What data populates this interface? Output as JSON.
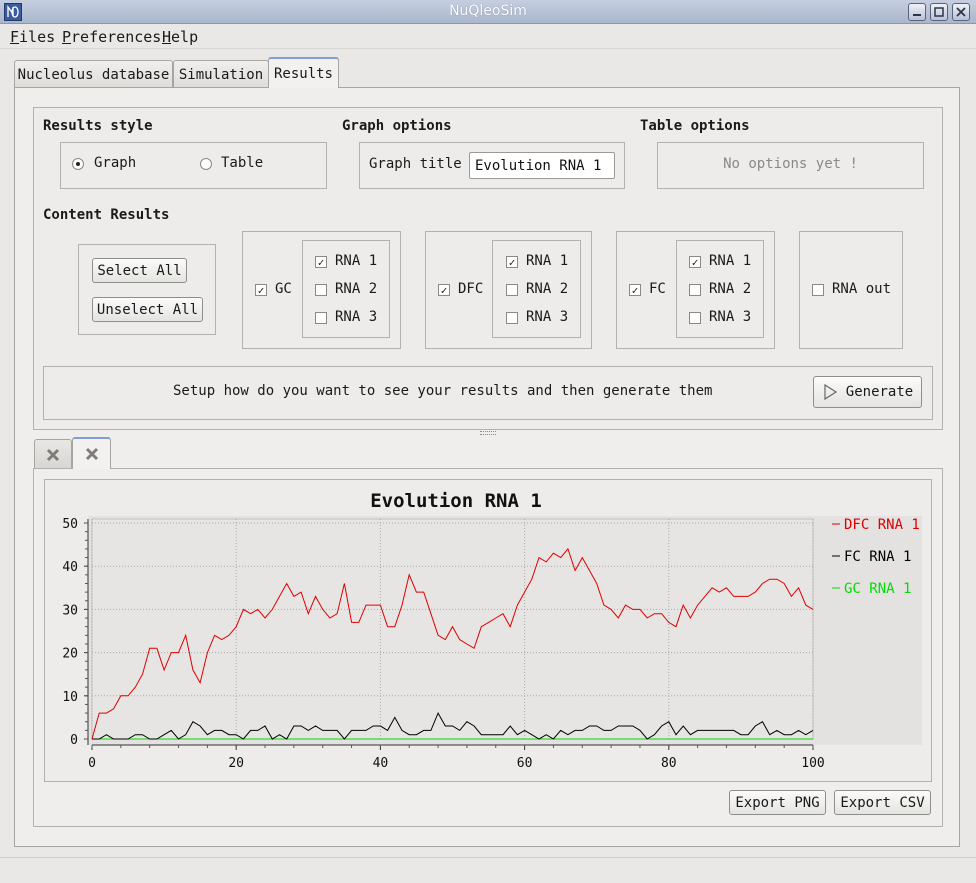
{
  "window": {
    "title": "NuQleoSim"
  },
  "menu": {
    "files": "Files",
    "preferences": "Preferences",
    "help": "Help"
  },
  "tabs": {
    "nucleolus": "Nucleolus database",
    "simulation": "Simulation",
    "results": "Results"
  },
  "results_style": {
    "heading": "Results style",
    "graph_label": "Graph",
    "table_label": "Table",
    "selected": "Graph"
  },
  "graph_options": {
    "heading": "Graph options",
    "title_label": "Graph title",
    "title_value": "Evolution RNA 1"
  },
  "table_options": {
    "heading": "Table options",
    "placeholder": "No options yet !"
  },
  "content_results": {
    "heading": "Content Results",
    "select_all": "Select All",
    "unselect_all": "Unselect All",
    "groups": [
      {
        "name": "GC",
        "checked": true,
        "rnas": [
          {
            "label": "RNA 1",
            "checked": true
          },
          {
            "label": "RNA 2",
            "checked": false
          },
          {
            "label": "RNA 3",
            "checked": false
          }
        ]
      },
      {
        "name": "DFC",
        "checked": true,
        "rnas": [
          {
            "label": "RNA 1",
            "checked": true
          },
          {
            "label": "RNA 2",
            "checked": false
          },
          {
            "label": "RNA 3",
            "checked": false
          }
        ]
      },
      {
        "name": "FC",
        "checked": true,
        "rnas": [
          {
            "label": "RNA 1",
            "checked": true
          },
          {
            "label": "RNA 2",
            "checked": false
          },
          {
            "label": "RNA 3",
            "checked": false
          }
        ]
      }
    ],
    "rna_out": {
      "label": "RNA out",
      "checked": false
    }
  },
  "generate": {
    "hint": "Setup how do you want to see your results and then generate them",
    "button": "Generate"
  },
  "export": {
    "png": "Export PNG",
    "csv": "Export CSV"
  },
  "colors": {
    "dfc": "#e00000",
    "fc": "#000000",
    "gc": "#00dd00",
    "accent": "#7f9ed4"
  },
  "chart_data": {
    "type": "line",
    "title": "Evolution RNA 1",
    "xlabel": "",
    "ylabel": "",
    "xlim": [
      0,
      100
    ],
    "ylim": [
      0,
      50
    ],
    "xticks": [
      0,
      20,
      40,
      60,
      80,
      100
    ],
    "yticks": [
      0,
      10,
      20,
      30,
      40,
      50
    ],
    "grid": true,
    "legend_position": "right",
    "x": [
      0,
      1,
      2,
      3,
      4,
      5,
      6,
      7,
      8,
      9,
      10,
      11,
      12,
      13,
      14,
      15,
      16,
      17,
      18,
      19,
      20,
      21,
      22,
      23,
      24,
      25,
      26,
      27,
      28,
      29,
      30,
      31,
      32,
      33,
      34,
      35,
      36,
      37,
      38,
      39,
      40,
      41,
      42,
      43,
      44,
      45,
      46,
      47,
      48,
      49,
      50,
      51,
      52,
      53,
      54,
      55,
      56,
      57,
      58,
      59,
      60,
      61,
      62,
      63,
      64,
      65,
      66,
      67,
      68,
      69,
      70,
      71,
      72,
      73,
      74,
      75,
      76,
      77,
      78,
      79,
      80,
      81,
      82,
      83,
      84,
      85,
      86,
      87,
      88,
      89,
      90,
      91,
      92,
      93,
      94,
      95,
      96,
      97,
      98,
      99,
      100
    ],
    "series": [
      {
        "name": "DFC RNA 1",
        "color": "#e00000",
        "values": [
          0,
          6,
          6,
          7,
          10,
          10,
          12,
          15,
          21,
          21,
          16,
          20,
          20,
          24,
          16,
          13,
          20,
          24,
          23,
          24,
          26,
          30,
          29,
          30,
          28,
          30,
          33,
          36,
          33,
          34,
          29,
          33,
          30,
          28,
          29,
          36,
          27,
          27,
          31,
          31,
          31,
          26,
          26,
          31,
          38,
          34,
          34,
          29,
          24,
          23,
          26,
          23,
          22,
          21,
          26,
          27,
          28,
          29,
          26,
          31,
          34,
          37,
          42,
          41,
          43,
          42,
          44,
          39,
          42,
          39,
          36,
          31,
          30,
          28,
          31,
          30,
          30,
          28,
          29,
          29,
          27,
          26,
          31,
          28,
          31,
          33,
          35,
          34,
          35,
          33,
          33,
          33,
          34,
          36,
          37,
          37,
          36,
          33,
          35,
          31,
          30
        ]
      },
      {
        "name": "FC RNA 1",
        "color": "#000000",
        "values": [
          0,
          0,
          1,
          0,
          0,
          0,
          1,
          1,
          0,
          0,
          1,
          2,
          0,
          1,
          4,
          3,
          1,
          2,
          2,
          1,
          1,
          0,
          2,
          2,
          3,
          0,
          1,
          0,
          3,
          3,
          2,
          3,
          2,
          2,
          2,
          0,
          2,
          2,
          2,
          3,
          3,
          2,
          5,
          2,
          1,
          1,
          2,
          2,
          6,
          3,
          3,
          2,
          4,
          3,
          1,
          1,
          1,
          1,
          3,
          1,
          2,
          1,
          0,
          1,
          0,
          2,
          1,
          2,
          2,
          3,
          3,
          2,
          2,
          3,
          3,
          3,
          2,
          0,
          1,
          3,
          4,
          1,
          3,
          1,
          2,
          2,
          2,
          2,
          2,
          2,
          1,
          1,
          3,
          4,
          1,
          2,
          1,
          1,
          2,
          1,
          2
        ]
      },
      {
        "name": "GC RNA 1",
        "color": "#00dd00",
        "values": [
          0,
          0,
          0,
          0,
          0,
          0,
          0,
          0,
          0,
          0,
          0,
          0,
          0,
          0,
          0,
          0,
          0,
          0,
          0,
          0,
          0,
          0,
          0,
          0,
          0,
          0,
          0,
          0,
          0,
          0,
          0,
          0,
          0,
          0,
          0,
          0,
          0,
          0,
          0,
          0,
          0,
          0,
          0,
          0,
          0,
          0,
          0,
          0,
          0,
          0,
          0,
          0,
          0,
          0,
          0,
          0,
          0,
          0,
          0,
          0,
          0,
          0,
          0,
          0,
          0,
          0,
          0,
          0,
          0,
          0,
          0,
          0,
          0,
          0,
          0,
          0,
          0,
          0,
          0,
          0,
          0,
          0,
          0,
          0,
          0,
          0,
          0,
          0,
          0,
          0,
          0,
          0,
          0,
          0,
          0,
          0,
          0,
          0,
          0,
          0,
          0
        ]
      }
    ]
  }
}
